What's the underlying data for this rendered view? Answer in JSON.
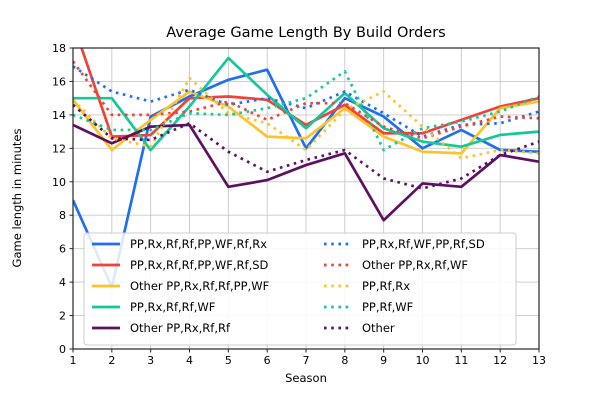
{
  "title": "Average Game Length By Build Orders",
  "chart_data": {
    "type": "line",
    "title": "Average Game Length By Build Orders",
    "xlabel": "Season",
    "ylabel": "Game length in minutes",
    "x": [
      1,
      2,
      3,
      4,
      5,
      6,
      7,
      8,
      9,
      10,
      11,
      12,
      13
    ],
    "xlim": [
      1,
      13
    ],
    "ylim": [
      0,
      18
    ],
    "ytick_step": 2,
    "grid": true,
    "grid_color": "#c8c8c8",
    "legend_position": "lower-left two-column box",
    "series": [
      {
        "name": "PP,Rx,Rf,Rf,PP,WF,Rf,Rx",
        "style": "solid",
        "color": "#1f6ff0",
        "values": [
          8.9,
          3.7,
          13.9,
          15.1,
          16.1,
          16.7,
          12.0,
          15.0,
          13.9,
          12.0,
          13.1,
          11.9,
          11.8
        ]
      },
      {
        "name": "PP,Rx,Rf,Rf,PP,WF,Rf,SD",
        "style": "solid",
        "color": "#f04238",
        "values": [
          19.5,
          12.7,
          12.8,
          15.0,
          15.1,
          14.9,
          13.4,
          14.6,
          12.9,
          12.9,
          13.7,
          14.5,
          15.0
        ]
      },
      {
        "name": "Other PP,Rx,Rf,Rf,PP,WF",
        "style": "solid",
        "color": "#fcc32b",
        "values": [
          14.9,
          11.9,
          13.7,
          15.4,
          14.5,
          12.7,
          12.6,
          14.4,
          12.7,
          11.8,
          11.7,
          14.4,
          14.8
        ]
      },
      {
        "name": "PP,Rx,Rf,Rf,WF",
        "style": "solid",
        "color": "#16c79a",
        "values": [
          15.0,
          15.0,
          11.9,
          14.5,
          17.4,
          15.2,
          13.2,
          15.3,
          13.2,
          12.4,
          12.1,
          12.8,
          13.0
        ]
      },
      {
        "name": "Other PP,Rx,Rf,Rf",
        "style": "solid",
        "color": "#5e1060",
        "values": [
          13.4,
          12.3,
          13.3,
          13.4,
          9.7,
          10.1,
          11.0,
          11.7,
          7.7,
          9.9,
          9.7,
          11.6,
          11.2
        ]
      },
      {
        "name": "PP,Rx,Rf,WF,PP,Rf,SD",
        "style": "dotted",
        "color": "#1f6ff0",
        "values": [
          16.9,
          15.4,
          14.8,
          15.5,
          14.6,
          15.0,
          14.4,
          15.4,
          14.1,
          12.7,
          13.4,
          13.5,
          14.2
        ]
      },
      {
        "name": "Other PP,Rx,Rf,WF",
        "style": "dotted",
        "color": "#f04238",
        "values": [
          17.2,
          14.0,
          14.0,
          14.2,
          14.8,
          13.7,
          14.7,
          14.7,
          13.3,
          12.6,
          13.3,
          13.9,
          13.8
        ]
      },
      {
        "name": "PP,Rf,Rx",
        "style": "dotted",
        "color": "#fcc32b",
        "values": [
          14.9,
          12.6,
          12.1,
          16.2,
          14.1,
          13.5,
          11.9,
          14.3,
          15.4,
          13.3,
          11.4,
          11.9,
          11.7
        ]
      },
      {
        "name": "PP,Rf,WF",
        "style": "dotted",
        "color": "#16c79a",
        "values": [
          14.0,
          13.1,
          13.1,
          14.1,
          14.0,
          14.4,
          15.0,
          16.6,
          11.9,
          13.2,
          13.6,
          14.2,
          15.1
        ]
      },
      {
        "name": "Other",
        "style": "dotted",
        "color": "#5e1060",
        "values": [
          14.6,
          12.6,
          12.5,
          13.5,
          11.8,
          10.6,
          11.3,
          11.9,
          10.2,
          9.6,
          10.2,
          11.6,
          12.4
        ]
      }
    ],
    "legend_columns": [
      [
        0,
        1,
        2,
        3,
        4
      ],
      [
        5,
        6,
        7,
        8,
        9
      ]
    ]
  }
}
